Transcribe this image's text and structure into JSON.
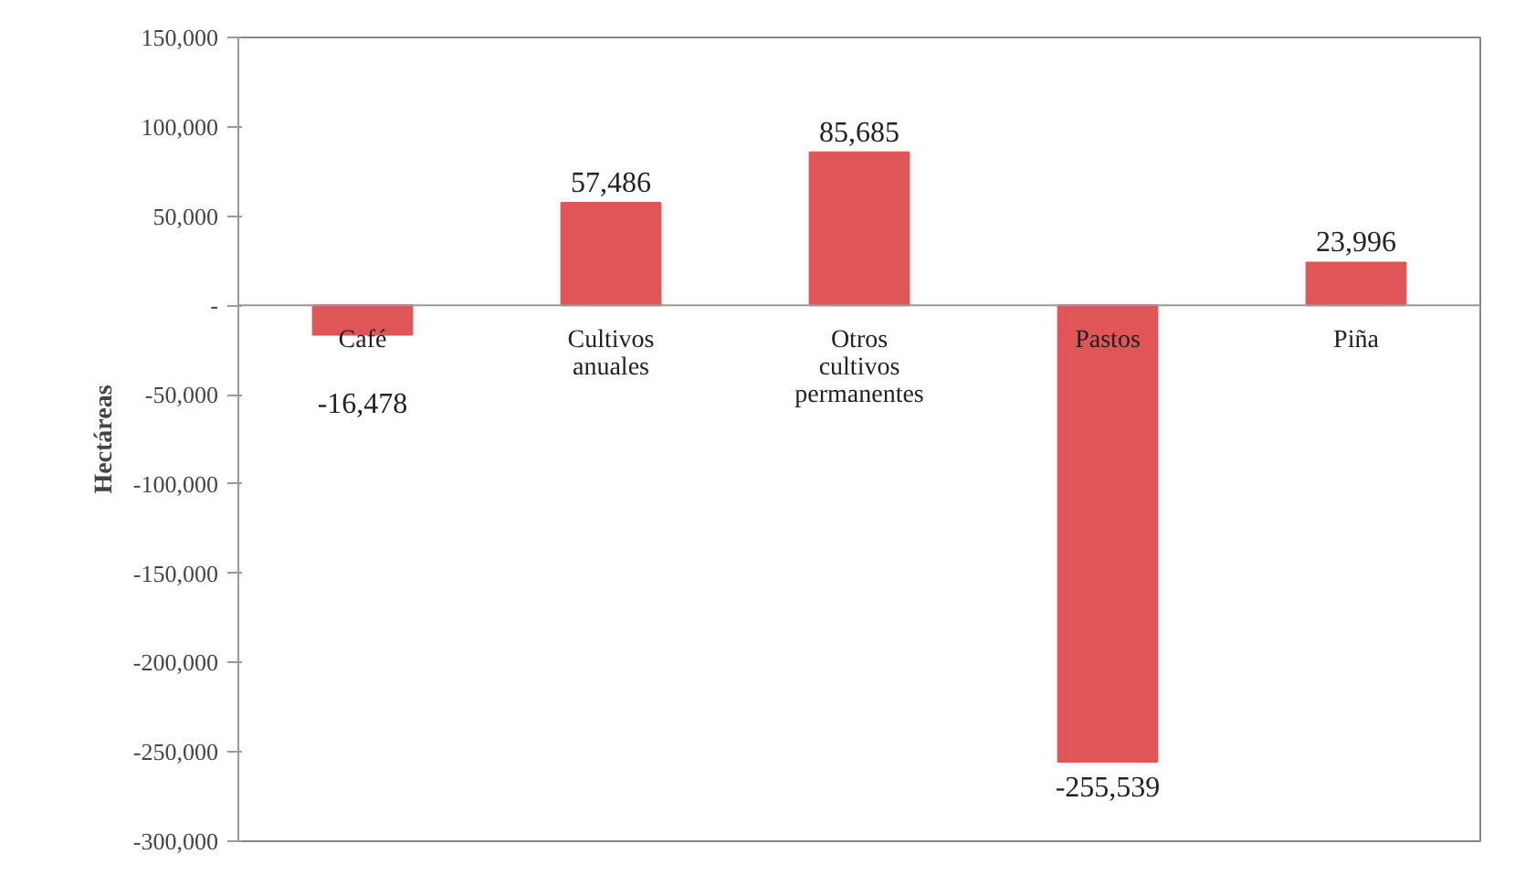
{
  "chart_data": {
    "type": "bar",
    "ylabel": "Hectáreas",
    "categories": [
      "Café",
      "Cultivos\nanuales",
      "Otros\ncultivos\npermanentes",
      "Pastos",
      "Piña"
    ],
    "values": [
      -16478,
      57486,
      85685,
      -255539,
      23996
    ],
    "color": "#e05555",
    "value_labels": [
      "-16,478",
      "57,486",
      "85,685",
      "-255,539",
      "23,996"
    ],
    "ylim": [
      -300000,
      150000
    ],
    "yticks": [
      {
        "value": -300000,
        "label": "-300,000"
      },
      {
        "value": -250000,
        "label": "-250,000"
      },
      {
        "value": -200000,
        "label": "-200,000"
      },
      {
        "value": -150000,
        "label": "-150,000"
      },
      {
        "value": -100000,
        "label": "-100,000"
      },
      {
        "value": -50000,
        "label": "-50,000"
      },
      {
        "value": 0,
        "label": "-"
      },
      {
        "value": 50000,
        "label": "50,000"
      },
      {
        "value": 100000,
        "label": "100,000"
      },
      {
        "value": 150000,
        "label": "150,000"
      }
    ],
    "grid": false
  }
}
